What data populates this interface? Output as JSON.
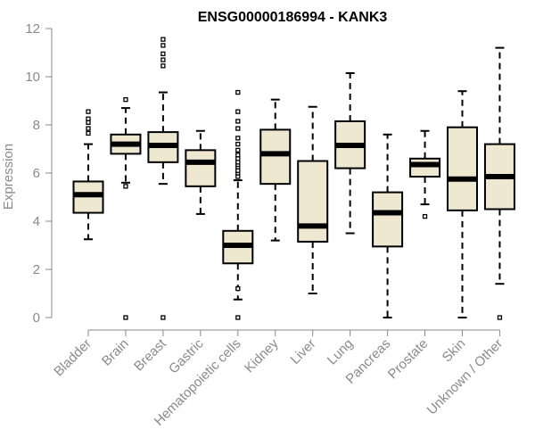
{
  "chart_data": {
    "type": "boxplot",
    "title": "ENSG00000186994 - KANK3",
    "xlabel": "",
    "ylabel": "Expression",
    "ylim": [
      0,
      12
    ],
    "yticks": [
      0,
      2,
      4,
      6,
      8,
      10,
      12
    ],
    "grid": false,
    "colors": {
      "box_fill": "#efe8d0",
      "stroke": "#000000",
      "axis": "#8a8a8a"
    },
    "categories": [
      "Bladder",
      "Brain",
      "Breast",
      "Gastric",
      "Hematopoietic cells",
      "Kidney",
      "Liver",
      "Lung",
      "Pancreas",
      "Prostate",
      "Skin",
      "Unknown / Other"
    ],
    "boxes": [
      {
        "category": "Bladder",
        "whisker_low": 3.25,
        "q1": 4.35,
        "median": 5.1,
        "q3": 5.65,
        "whisker_high": 7.2,
        "outliers": [
          7.65,
          7.85,
          8.1,
          8.25,
          8.55
        ]
      },
      {
        "category": "Brain",
        "whisker_low": 5.6,
        "q1": 6.8,
        "median": 7.2,
        "q3": 7.6,
        "whisker_high": 8.7,
        "outliers": [
          0.0,
          5.45,
          9.05
        ]
      },
      {
        "category": "Breast",
        "whisker_low": 5.55,
        "q1": 6.45,
        "median": 7.15,
        "q3": 7.7,
        "whisker_high": 9.35,
        "outliers": [
          0.0,
          10.45,
          10.7,
          10.95,
          11.3,
          11.55
        ]
      },
      {
        "category": "Gastric",
        "whisker_low": 4.3,
        "q1": 5.45,
        "median": 6.45,
        "q3": 6.95,
        "whisker_high": 7.75,
        "outliers": []
      },
      {
        "category": "Hematopoietic cells",
        "whisker_low": 0.75,
        "q1": 2.25,
        "median": 3.0,
        "q3": 3.6,
        "whisker_high": 5.7,
        "outliers": [
          0.0,
          1.2,
          5.85,
          6.0,
          6.1,
          6.25,
          6.35,
          6.45,
          6.6,
          6.75,
          6.95,
          7.2,
          7.45,
          7.85,
          8.15,
          8.55,
          9.35
        ]
      },
      {
        "category": "Kidney",
        "whisker_low": 3.2,
        "q1": 5.55,
        "median": 6.8,
        "q3": 7.8,
        "whisker_high": 9.05,
        "outliers": []
      },
      {
        "category": "Liver",
        "whisker_low": 1.0,
        "q1": 3.15,
        "median": 3.8,
        "q3": 6.5,
        "whisker_high": 8.75,
        "outliers": []
      },
      {
        "category": "Lung",
        "whisker_low": 3.5,
        "q1": 6.2,
        "median": 7.15,
        "q3": 8.15,
        "whisker_high": 10.15,
        "outliers": []
      },
      {
        "category": "Pancreas",
        "whisker_low": 0.0,
        "q1": 2.95,
        "median": 4.35,
        "q3": 5.2,
        "whisker_high": 7.6,
        "outliers": []
      },
      {
        "category": "Prostate",
        "whisker_low": 4.7,
        "q1": 5.85,
        "median": 6.35,
        "q3": 6.6,
        "whisker_high": 7.75,
        "outliers": [
          4.2
        ]
      },
      {
        "category": "Skin",
        "whisker_low": 0.0,
        "q1": 4.45,
        "median": 5.75,
        "q3": 7.9,
        "whisker_high": 9.4,
        "outliers": []
      },
      {
        "category": "Unknown / Other",
        "whisker_low": 1.4,
        "q1": 4.5,
        "median": 5.85,
        "q3": 7.2,
        "whisker_high": 11.2,
        "outliers": [
          0.0
        ]
      }
    ]
  }
}
